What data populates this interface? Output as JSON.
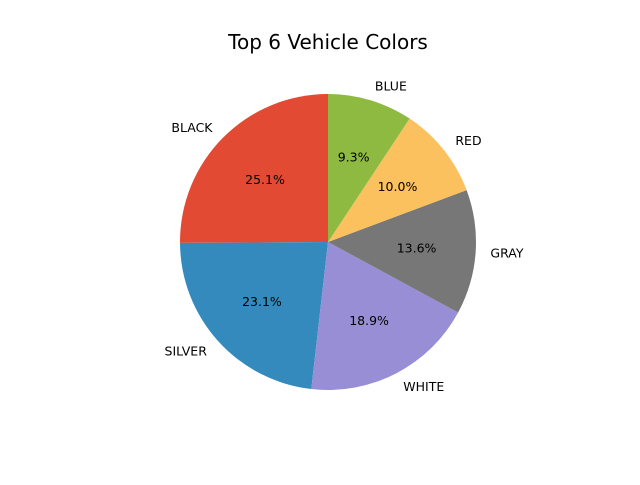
{
  "chart_data": {
    "type": "pie",
    "title": "Top 6 Vehicle Colors",
    "categories": [
      "BLACK",
      "SILVER",
      "WHITE",
      "GRAY",
      "RED",
      "BLUE"
    ],
    "values": [
      25.1,
      23.1,
      18.9,
      13.6,
      10.0,
      9.3
    ],
    "value_labels": [
      "25.1%",
      "23.1%",
      "18.9%",
      "13.6%",
      "10.0%",
      "9.3%"
    ],
    "colors": [
      "#E24A33",
      "#348ABD",
      "#988ED5",
      "#777777",
      "#FBC15E",
      "#8EBA42"
    ],
    "start_angle_deg": 90,
    "direction": "counterclockwise",
    "legend": "none"
  }
}
